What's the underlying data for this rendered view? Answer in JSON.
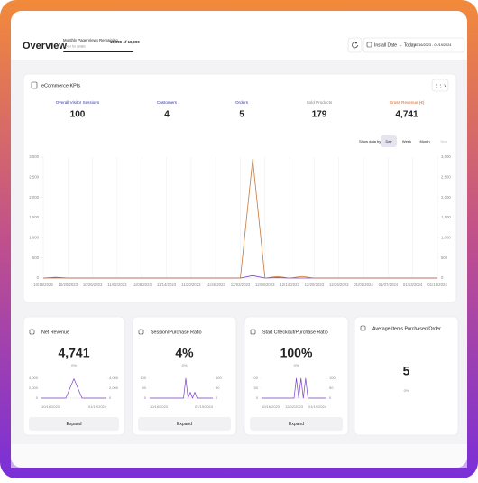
{
  "header": {
    "title": "Overview",
    "page_views_label": "Monthly Page Views Remaining",
    "page_views_value": "10,000 of 10,000",
    "page_views_hint": "Hover for details",
    "date_filter": "Install Date → Today",
    "date_range": "10/16/2023 - 01/19/2024"
  },
  "kpi_panel": {
    "title": "eCommerce KPIs",
    "kpis": [
      {
        "label": "Overall Visitor Sessions",
        "value": "100"
      },
      {
        "label": "Customers",
        "value": "4"
      },
      {
        "label": "Orders",
        "value": "5"
      },
      {
        "label": "Sold Products",
        "value": "179"
      },
      {
        "label": "Gross Revenue (€)",
        "value": "4,741"
      }
    ],
    "show_data_by": "Show data by:",
    "periods": [
      "Day",
      "Week",
      "Month",
      "Year"
    ]
  },
  "cards": [
    {
      "title": "Net Revenue",
      "value": "4,741",
      "change": "0%",
      "button": "Expand"
    },
    {
      "title": "Session/Purchase Ratio",
      "value": "4%",
      "change": "0%",
      "button": "Expand"
    },
    {
      "title": "Start Checkout/Purchase Ratio",
      "value": "100%",
      "change": "0%",
      "button": "Expand"
    },
    {
      "title": "Average Items Purchased/Order",
      "value": "5",
      "change": "0%"
    }
  ],
  "chart_data": [
    {
      "type": "line",
      "grid": "x",
      "categories": [
        "10/16/2023",
        null,
        "10/20/2023",
        null,
        "10/26/2023",
        null,
        "11/02/2023",
        null,
        "11/08/2023",
        null,
        "11/14/2023",
        null,
        "11/20/2023",
        null,
        "11/26/2023",
        null,
        "12/02/2023",
        null,
        "12/08/2023",
        null,
        "12/14/2023",
        null,
        "12/20/2023",
        null,
        "12/26/2023",
        null,
        "01/01/2024",
        null,
        "01/07/2024",
        null,
        "01/13/2024",
        null,
        "01/19/2024"
      ],
      "series": [
        {
          "color": "#7b3fc4",
          "values": [
            0,
            20,
            0,
            0,
            0,
            0,
            0,
            0,
            0,
            0,
            0,
            0,
            0,
            0,
            0,
            0,
            0,
            60,
            0,
            10,
            0,
            0,
            0,
            0,
            0,
            0,
            0,
            0,
            0,
            0,
            0,
            0,
            0
          ]
        },
        {
          "color": "#c8763a",
          "values": [
            0,
            0,
            0,
            0,
            0,
            0,
            0,
            0,
            0,
            0,
            0,
            0,
            0,
            0,
            0,
            0,
            0,
            2950,
            0,
            40,
            0,
            40,
            0,
            0,
            0,
            0,
            0,
            0,
            0,
            0,
            0,
            0,
            0
          ]
        }
      ],
      "ylim": [
        0,
        3000
      ],
      "yticks": [
        0,
        500,
        {
          "value": 1000,
          "label": "1,000"
        },
        {
          "value": 1500,
          "label": "1,500"
        },
        {
          "value": 2000,
          "label": "2,000"
        },
        {
          "value": 2500,
          "label": "2,500"
        },
        {
          "value": 3000,
          "label": "3,000"
        }
      ],
      "y2lim": [
        0,
        3000
      ],
      "y2ticks": [
        0,
        500,
        {
          "value": 1000,
          "label": "1,000"
        },
        {
          "value": 1500,
          "label": "1,500"
        },
        {
          "value": 2000,
          "label": "2,000"
        },
        {
          "value": 2500,
          "label": "2,500"
        },
        {
          "value": 3000,
          "label": "3,000"
        }
      ]
    },
    {
      "type": "line",
      "categories": [
        "10/16/2023",
        null,
        null,
        null,
        null,
        null,
        null,
        null,
        "01/19/2024"
      ],
      "series": [
        {
          "color": "#7b3fc4",
          "values": [
            0,
            0,
            0,
            0,
            3900,
            0,
            0,
            0,
            0
          ]
        }
      ],
      "ylim": [
        0,
        4000
      ],
      "yticks": [
        0,
        {
          "value": 2000,
          "label": "2,000"
        },
        {
          "value": 4000,
          "label": "4,000"
        }
      ],
      "y2lim": [
        0,
        4000
      ],
      "y2ticks": [
        0,
        {
          "value": 2000,
          "label": "2,000"
        },
        {
          "value": 4000,
          "label": "4,000"
        }
      ]
    },
    {
      "type": "line",
      "categories": [
        "10/16/2023",
        null,
        null,
        null,
        null,
        null,
        null,
        null,
        null,
        null,
        null,
        null,
        null,
        null,
        null,
        null,
        null,
        null,
        null,
        null,
        null,
        null,
        null,
        null,
        null,
        null,
        null,
        null,
        "01/19/2024"
      ],
      "series": [
        {
          "color": "#7b3fc4",
          "values": [
            0,
            0,
            0,
            0,
            0,
            0,
            0,
            0,
            0,
            0,
            0,
            0,
            0,
            0,
            0,
            0,
            100,
            0,
            30,
            0,
            30,
            0,
            0,
            0,
            0,
            0,
            0,
            0,
            0
          ]
        }
      ],
      "ylim": [
        0,
        100
      ],
      "yticks": [
        0,
        50,
        100
      ],
      "y2lim": [
        0,
        100
      ],
      "y2ticks": [
        0,
        50,
        100
      ]
    },
    {
      "type": "line",
      "categories": [
        "10/16/2023",
        null,
        null,
        null,
        null,
        null,
        null,
        null,
        null,
        null,
        null,
        null,
        null,
        null,
        "12/02/2023",
        null,
        null,
        null,
        null,
        null,
        null,
        null,
        null,
        null,
        null,
        null,
        null,
        null,
        "01/19/2024"
      ],
      "series": [
        {
          "color": "#7b3fc4",
          "values": [
            0,
            0,
            0,
            0,
            0,
            0,
            0,
            0,
            0,
            0,
            0,
            0,
            0,
            0,
            0,
            100,
            0,
            100,
            0,
            100,
            0,
            0,
            0,
            0,
            0,
            0,
            0,
            0,
            0
          ]
        }
      ],
      "ylim": [
        0,
        100
      ],
      "yticks": [
        0,
        50,
        100
      ],
      "y2lim": [
        0,
        100
      ],
      "y2ticks": [
        0,
        50,
        100
      ]
    }
  ]
}
